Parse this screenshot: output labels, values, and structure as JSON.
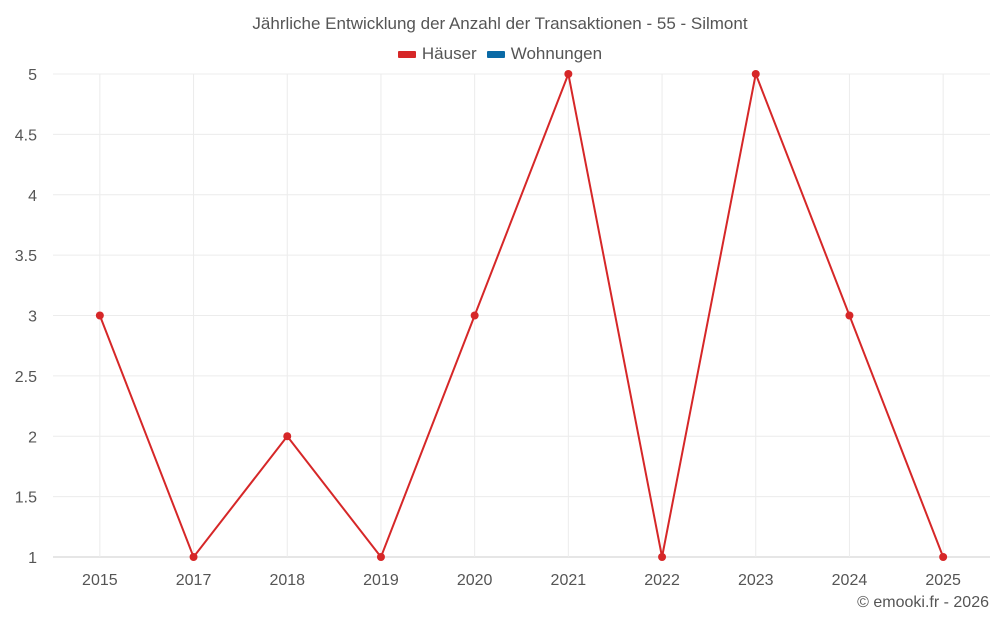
{
  "chart_data": {
    "type": "line",
    "title": "Jährliche Entwicklung der Anzahl der Transaktionen - 55 - Silmont",
    "categories": [
      "2015",
      "2017",
      "2018",
      "2019",
      "2020",
      "2021",
      "2022",
      "2023",
      "2024",
      "2025"
    ],
    "series": [
      {
        "name": "Häuser",
        "color": "#d62728",
        "values": [
          3,
          1,
          2,
          1,
          3,
          5,
          1,
          5,
          3,
          1
        ]
      },
      {
        "name": "Wohnungen",
        "color": "#0a6aa6",
        "values": []
      }
    ],
    "xlabel": "",
    "ylabel": "",
    "ylim": [
      1,
      5
    ],
    "yticks": [
      "1",
      "1.5",
      "2",
      "2.5",
      "3",
      "3.5",
      "4",
      "4.5",
      "5"
    ],
    "grid": true,
    "legend_position": "top"
  },
  "legend": {
    "items": [
      {
        "label": "Häuser",
        "color": "#d62728"
      },
      {
        "label": "Wohnungen",
        "color": "#0a6aa6"
      }
    ]
  },
  "credit": "© emooki.fr - 2026"
}
